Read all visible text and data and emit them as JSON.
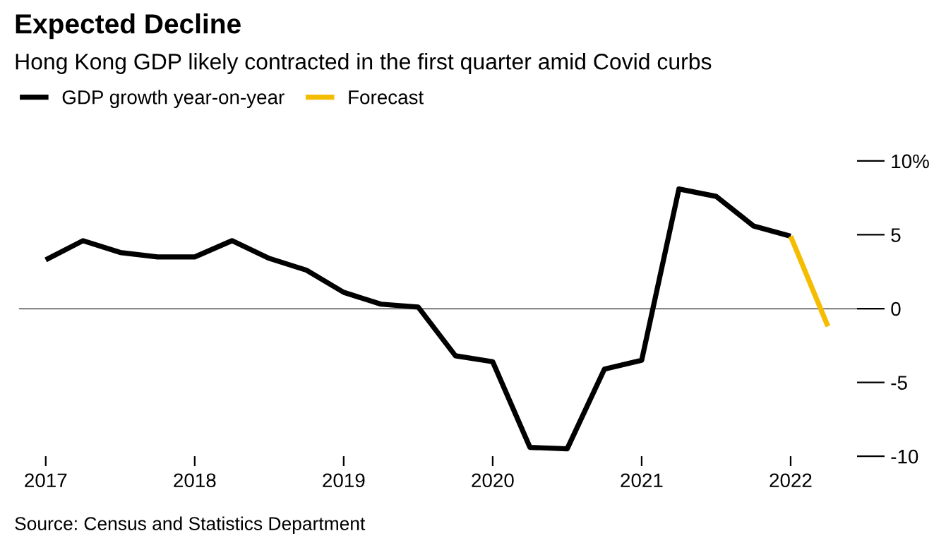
{
  "chart_data": {
    "type": "line",
    "title": "Expected Decline",
    "subtitle": "Hong Kong GDP likely contracted in the first quarter amid Covid curbs",
    "annotations": [
      "Source: Census and Statistics Department"
    ],
    "series": [
      {
        "name": "GDP growth year-on-year",
        "color": "#000000",
        "x": [
          2017,
          2017.25,
          2017.5,
          2017.75,
          2018,
          2018.25,
          2018.5,
          2018.75,
          2019,
          2019.25,
          2019.5,
          2019.75,
          2020,
          2020.25,
          2020.5,
          2020.75,
          2021,
          2021.25,
          2021.5,
          2021.75,
          2022
        ],
        "values": [
          3.3,
          4.6,
          3.8,
          3.5,
          3.5,
          4.6,
          3.4,
          2.6,
          1.1,
          0.3,
          0.1,
          -3.2,
          -3.6,
          -9.4,
          -9.5,
          -4.1,
          -3.5,
          8.1,
          7.6,
          5.6,
          4.9
        ]
      },
      {
        "name": "Forecast",
        "color": "#f5bd02",
        "x": [
          2022,
          2022.25
        ],
        "values": [
          4.9,
          -1.2
        ]
      }
    ],
    "xlim": [
      2016.82,
      2022.63
    ],
    "xticks": [
      2017,
      2018,
      2019,
      2020,
      2021,
      2022
    ],
    "ylim": [
      -10,
      10
    ],
    "yticks": [
      {
        "value": 10,
        "label": "10%"
      },
      5,
      0,
      -5,
      -10
    ],
    "ref_lines": [
      {
        "axis": "y",
        "value": 0,
        "color": "#888888"
      }
    ],
    "grid": false,
    "legend": "top left",
    "marker": "none",
    "line_style": "solid"
  }
}
